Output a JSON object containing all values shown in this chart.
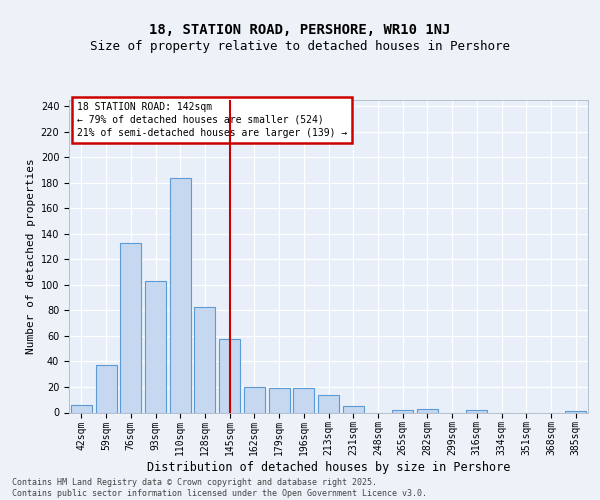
{
  "title1": "18, STATION ROAD, PERSHORE, WR10 1NJ",
  "title2": "Size of property relative to detached houses in Pershore",
  "xlabel": "Distribution of detached houses by size in Pershore",
  "ylabel": "Number of detached properties",
  "categories": [
    "42sqm",
    "59sqm",
    "76sqm",
    "93sqm",
    "110sqm",
    "128sqm",
    "145sqm",
    "162sqm",
    "179sqm",
    "196sqm",
    "213sqm",
    "231sqm",
    "248sqm",
    "265sqm",
    "282sqm",
    "299sqm",
    "316sqm",
    "334sqm",
    "351sqm",
    "368sqm",
    "385sqm"
  ],
  "values": [
    6,
    37,
    133,
    103,
    184,
    83,
    58,
    20,
    19,
    19,
    14,
    5,
    0,
    2,
    3,
    0,
    2,
    0,
    0,
    0,
    1
  ],
  "bar_color": "#c5d8f0",
  "bar_edge_color": "#5b9bd5",
  "vline_x": 6.0,
  "vline_color": "#cc0000",
  "annotation_text": "18 STATION ROAD: 142sqm\n← 79% of detached houses are smaller (524)\n21% of semi-detached houses are larger (139) →",
  "annotation_box_facecolor": "#ffffff",
  "annotation_box_edgecolor": "#cc0000",
  "ylim": [
    0,
    245
  ],
  "yticks": [
    0,
    20,
    40,
    60,
    80,
    100,
    120,
    140,
    160,
    180,
    200,
    220,
    240
  ],
  "footer_text": "Contains HM Land Registry data © Crown copyright and database right 2025.\nContains public sector information licensed under the Open Government Licence v3.0.",
  "fig_facecolor": "#edf2f9",
  "ax_facecolor": "#e8eff8",
  "grid_color": "#ffffff",
  "title1_fontsize": 10,
  "title2_fontsize": 9,
  "xlabel_fontsize": 8.5,
  "ylabel_fontsize": 8,
  "tick_fontsize": 7,
  "annotation_fontsize": 7,
  "footer_fontsize": 6
}
